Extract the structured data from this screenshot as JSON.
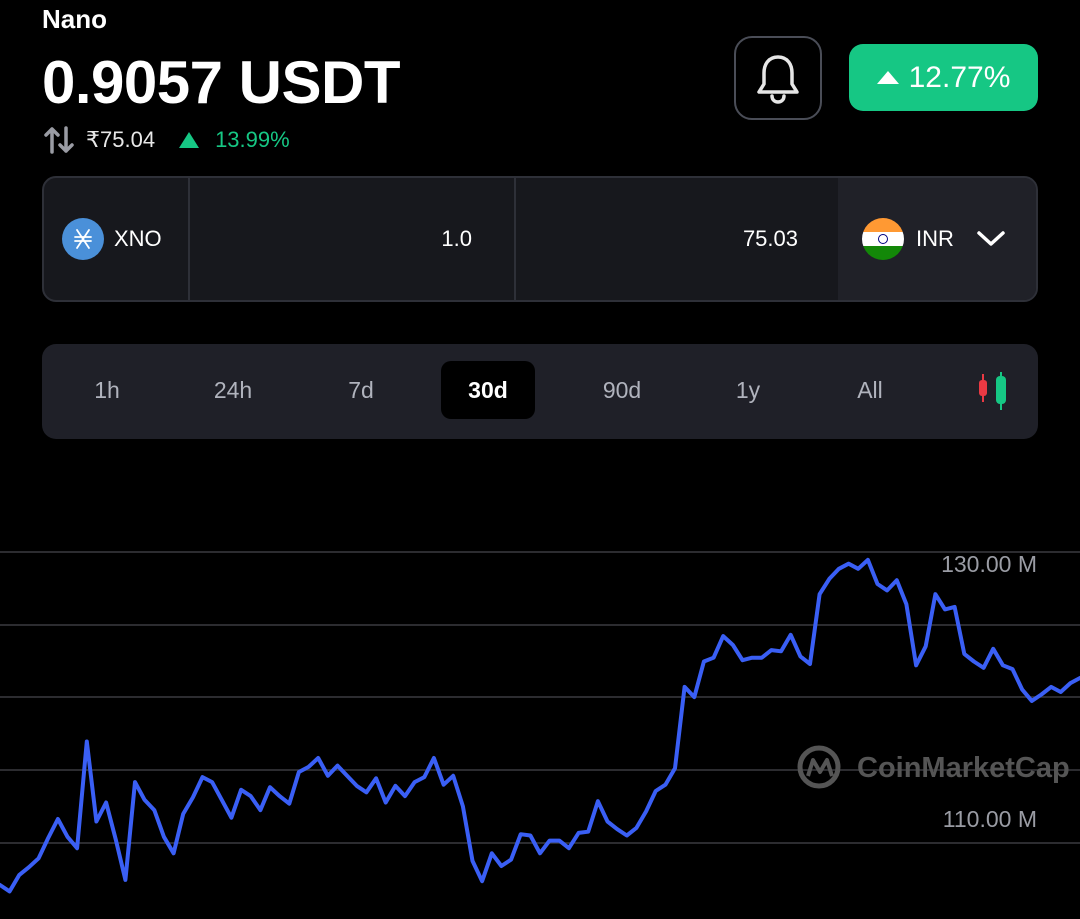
{
  "coin": {
    "name": "Nano",
    "price": "0.9057 USDT"
  },
  "sub": {
    "inr_price": "₹75.04",
    "inr_change": "13.99%"
  },
  "header": {
    "change_badge": "12.77%"
  },
  "converter": {
    "from_symbol": "XNO",
    "from_amount": "1.0",
    "to_amount": "75.03",
    "to_currency": "INR"
  },
  "ranges": {
    "items": [
      "1h",
      "24h",
      "7d",
      "30d",
      "90d",
      "1y",
      "All"
    ],
    "active": "30d"
  },
  "colors": {
    "accent_green": "#16c784",
    "line": "#3a5ff5",
    "down_red": "#ea3943"
  },
  "icons": [
    "swap-icon",
    "bell-icon",
    "xno-logo-icon",
    "india-flag-icon",
    "chevron-down-icon",
    "candlestick-icon"
  ],
  "chart_data": {
    "type": "line",
    "ylabels": [
      "130.00 M",
      "110.00 M"
    ],
    "watermark": "CoinMarketCap",
    "yunit": "M",
    "ylim": [
      102,
      136
    ],
    "grid": true,
    "series": [
      {
        "values": [
          103.7,
          103.2,
          104.5,
          105.1,
          105.8,
          107.4,
          108.9,
          107.5,
          106.6,
          115.0,
          108.7,
          110.2,
          107.3,
          104.1,
          111.8,
          110.4,
          109.6,
          107.5,
          106.2,
          109.3,
          110.6,
          112.2,
          111.8,
          110.4,
          109.0,
          111.2,
          110.7,
          109.6,
          111.4,
          110.7,
          110.1,
          112.6,
          113.0,
          113.7,
          112.3,
          113.1,
          112.3,
          111.5,
          111.0,
          112.1,
          110.2,
          111.5,
          110.7,
          111.8,
          112.2,
          113.7,
          111.6,
          112.3,
          109.9,
          105.6,
          104.0,
          106.2,
          105.2,
          105.7,
          107.7,
          107.6,
          106.2,
          107.2,
          107.2,
          106.6,
          107.8,
          107.9,
          110.3,
          108.7,
          108.1,
          107.6,
          108.2,
          109.5,
          111.1,
          111.6,
          112.9,
          119.3,
          118.5,
          121.3,
          121.6,
          123.3,
          122.6,
          121.4,
          121.6,
          121.6,
          122.2,
          122.1,
          123.4,
          121.7,
          121.1,
          126.6,
          127.8,
          128.6,
          129.0,
          128.6,
          129.3,
          127.4,
          126.9,
          127.7,
          125.8,
          121.0,
          122.5,
          126.6,
          125.4,
          125.6,
          121.9,
          121.3,
          120.8,
          122.3,
          121.0,
          120.7,
          119.1,
          118.2,
          118.7,
          119.3,
          118.9,
          119.6,
          120.0
        ]
      }
    ]
  }
}
